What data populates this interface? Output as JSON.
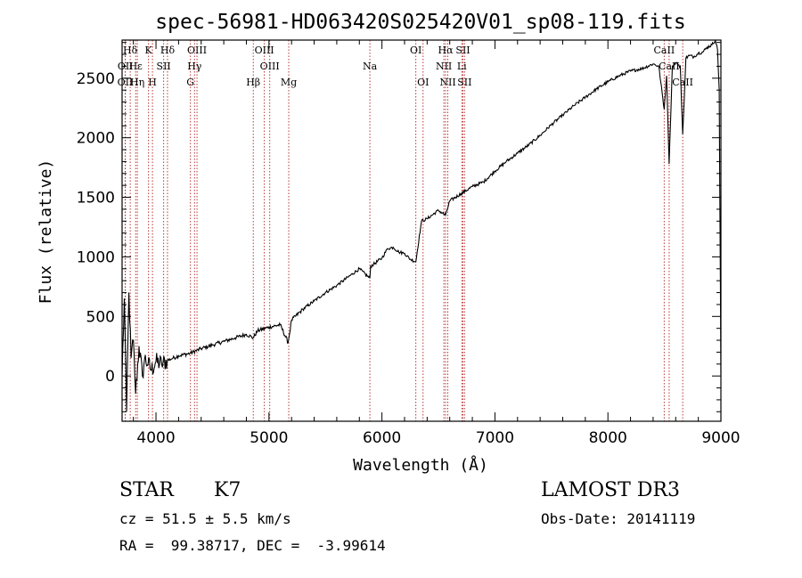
{
  "chart_data": {
    "type": "line",
    "title": "spec-56981-HD063420S025420V01_sp08-119.fits",
    "xlabel": "Wavelength (Å)",
    "ylabel": "Flux (relative)",
    "xlim": [
      3700,
      9000
    ],
    "ylim": [
      -380,
      2820
    ],
    "x_ticks": [
      4000,
      5000,
      6000,
      7000,
      8000,
      9000
    ],
    "y_ticks": [
      0,
      500,
      1000,
      1500,
      2000,
      2500
    ],
    "grid": false,
    "line_color": "#000000",
    "marker_color": "#b22222",
    "series": [
      {
        "x": [
          3700,
          3720,
          3740,
          3760,
          3780,
          3800,
          3820,
          3850,
          3880,
          3900,
          3930,
          3960,
          4000,
          4050,
          4100,
          4150,
          4200,
          4300,
          4400,
          4500,
          4600,
          4700,
          4800,
          4861,
          4900,
          5000,
          5100,
          5170,
          5200,
          5300,
          5400,
          5500,
          5600,
          5700,
          5800,
          5893,
          5900,
          6000,
          6050,
          6100,
          6150,
          6200,
          6250,
          6300,
          6350,
          6400,
          6500,
          6563,
          6600,
          6700,
          6800,
          6900,
          7000,
          7100,
          7200,
          7300,
          7400,
          7500,
          7600,
          7700,
          7800,
          7900,
          8000,
          8100,
          8200,
          8300,
          8400,
          8450,
          8498,
          8520,
          8542,
          8570,
          8600,
          8640,
          8662,
          8690,
          8720,
          8760,
          8800,
          8840,
          8880,
          8920,
          8950,
          8970,
          8985,
          9000
        ],
        "y": [
          0,
          650,
          -300,
          700,
          150,
          300,
          -150,
          250,
          0,
          150,
          100,
          50,
          120,
          100,
          130,
          150,
          170,
          190,
          230,
          260,
          290,
          320,
          350,
          320,
          380,
          410,
          430,
          280,
          470,
          560,
          630,
          700,
          760,
          830,
          900,
          820,
          920,
          990,
          1070,
          1080,
          1040,
          1030,
          980,
          960,
          1300,
          1320,
          1390,
          1350,
          1470,
          1530,
          1590,
          1630,
          1720,
          1800,
          1870,
          1940,
          2020,
          2110,
          2190,
          2270,
          2340,
          2410,
          2470,
          2520,
          2560,
          2580,
          2620,
          2600,
          2240,
          2520,
          1780,
          2600,
          2630,
          2600,
          2030,
          2670,
          2690,
          2680,
          2710,
          2720,
          2760,
          2780,
          2820,
          2740,
          2400,
          10
        ]
      }
    ],
    "lines": [
      {
        "label": "Hδ",
        "wl": 3772,
        "row": 0
      },
      {
        "label": "OII",
        "wl": 3729,
        "row": 1
      },
      {
        "label": "OII",
        "wl": 3727,
        "row": 2
      },
      {
        "label": "Hε",
        "wl": 3820,
        "row": 1
      },
      {
        "label": "Hη",
        "wl": 3835,
        "row": 2
      },
      {
        "label": "K",
        "wl": 3934,
        "row": 0
      },
      {
        "label": "H",
        "wl": 3969,
        "row": 2
      },
      {
        "label": "SII",
        "wl": 4068,
        "row": 1
      },
      {
        "label": "Hδ",
        "wl": 4102,
        "row": 0
      },
      {
        "label": "OIII",
        "wl": 4363,
        "row": 0
      },
      {
        "label": "Hγ",
        "wl": 4341,
        "row": 1
      },
      {
        "label": "G",
        "wl": 4305,
        "row": 2
      },
      {
        "label": "Hβ",
        "wl": 4861,
        "row": 2
      },
      {
        "label": "OIII",
        "wl": 4959,
        "row": 0
      },
      {
        "label": "OIII",
        "wl": 5007,
        "row": 1
      },
      {
        "label": "Mg",
        "wl": 5175,
        "row": 2
      },
      {
        "label": "Na",
        "wl": 5893,
        "row": 1
      },
      {
        "label": "OI",
        "wl": 6300,
        "row": 0
      },
      {
        "label": "OI",
        "wl": 6364,
        "row": 2
      },
      {
        "label": "Hα",
        "wl": 6563,
        "row": 0
      },
      {
        "label": "NII",
        "wl": 6548,
        "row": 1
      },
      {
        "label": "NII",
        "wl": 6583,
        "row": 2
      },
      {
        "label": "SII",
        "wl": 6717,
        "row": 0
      },
      {
        "label": "Li",
        "wl": 6707,
        "row": 1
      },
      {
        "label": "SII",
        "wl": 6731,
        "row": 2
      },
      {
        "label": "CaII",
        "wl": 8498,
        "row": 0
      },
      {
        "label": "CaII",
        "wl": 8542,
        "row": 1
      },
      {
        "label": "CaII",
        "wl": 8662,
        "row": 2
      }
    ]
  },
  "footer": {
    "class_label": "STAR",
    "subclass": "K7",
    "survey": "LAMOST DR3",
    "cz": "cz = 51.5 ± 5.5 km/s",
    "obs_date": "Obs-Date: 20141119",
    "radec": "RA =  99.38717, DEC =  -3.99614"
  }
}
